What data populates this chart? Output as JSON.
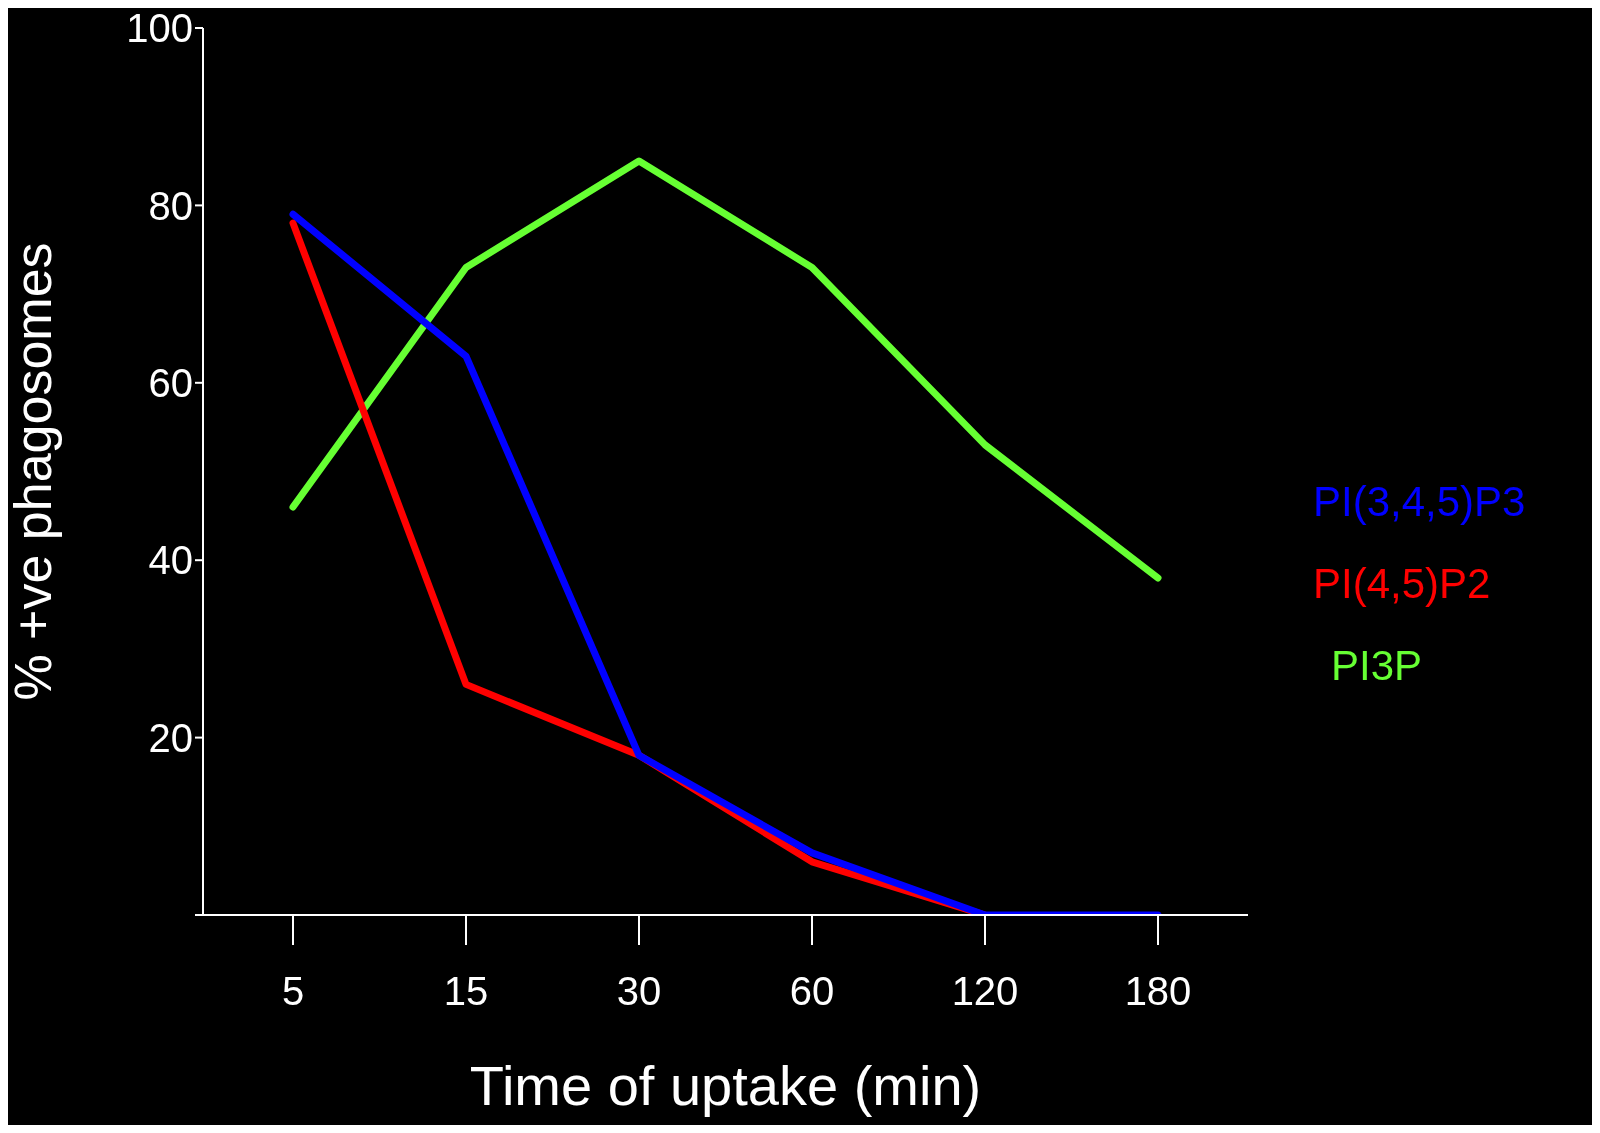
{
  "chart_data": {
    "type": "line",
    "xlabel": "Time of uptake (min)",
    "ylabel": "% +ve phagosomes",
    "categories": [
      "5",
      "15",
      "30",
      "60",
      "120",
      "180"
    ],
    "ylim": [
      0,
      100
    ],
    "yticks": [
      {
        "value": 0,
        "label": null
      },
      20,
      40,
      60,
      80,
      100
    ],
    "grid": false,
    "legend": "right",
    "marker": "none",
    "line_style": "solid",
    "series": [
      {
        "name": "PI(3,4,5)P3",
        "color": "#0000ff",
        "values": [
          79,
          63,
          18,
          7,
          0,
          0
        ]
      },
      {
        "name": "PI(4,5)P2",
        "color": "#ff0000",
        "values": [
          78,
          26,
          18,
          6,
          0,
          null
        ]
      },
      {
        "name": "PI3P",
        "color": "#66ff33",
        "values": [
          46,
          73,
          85,
          73,
          53,
          38
        ]
      }
    ]
  }
}
